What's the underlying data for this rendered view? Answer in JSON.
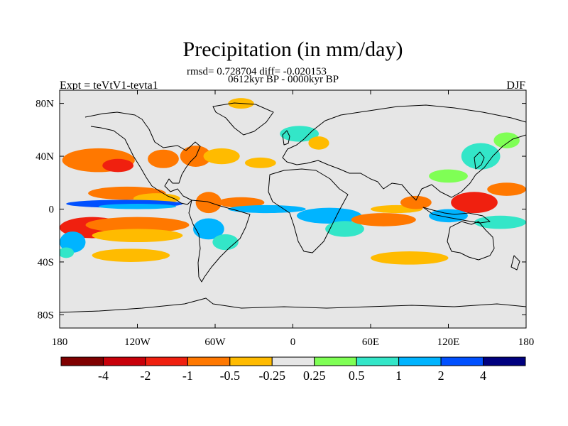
{
  "chart_data": {
    "type": "heatmap",
    "title": "Precipitation (in mm/day)",
    "subtitle_line1": "rmsd= 0.728704 diff= -0.020153",
    "subtitle_line2": "0612kyr BP - 0000kyr BP",
    "left_label": "Expt = teVtV1-tevta1",
    "right_label": "DJF",
    "x_range": [
      -180,
      180
    ],
    "y_range": [
      -90,
      90
    ],
    "x_ticks": [
      {
        "value": -180,
        "label": "180"
      },
      {
        "value": -120,
        "label": "120W"
      },
      {
        "value": -60,
        "label": "60W"
      },
      {
        "value": 0,
        "label": "0"
      },
      {
        "value": 60,
        "label": "60E"
      },
      {
        "value": 120,
        "label": "120E"
      },
      {
        "value": 180,
        "label": "180"
      }
    ],
    "y_ticks": [
      {
        "value": 80,
        "label": "80N"
      },
      {
        "value": 40,
        "label": "40N"
      },
      {
        "value": 0,
        "label": "0"
      },
      {
        "value": -40,
        "label": "40S"
      },
      {
        "value": -80,
        "label": "80S"
      }
    ],
    "colorbar": {
      "colors": [
        "#7f0000",
        "#c8000a",
        "#f0200f",
        "#ff7800",
        "#ffbb00",
        "#e6e6e6",
        "#7fff55",
        "#33e6c8",
        "#00b4ff",
        "#0050ff",
        "#00007f"
      ],
      "labels": [
        "-4",
        "-2",
        "-1",
        "-0.5",
        "-0.25",
        "0.25",
        "0.5",
        "1",
        "2",
        "4"
      ]
    },
    "regions": [
      {
        "level": -2,
        "cx": -150,
        "cy": 37,
        "rx": 28,
        "ry": 9
      },
      {
        "level": -3,
        "cx": -135,
        "cy": 33,
        "rx": 12,
        "ry": 5
      },
      {
        "level": -2,
        "cx": -128,
        "cy": 12,
        "rx": 30,
        "ry": 5
      },
      {
        "level": -1,
        "cx": -105,
        "cy": 8,
        "rx": 18,
        "ry": 4
      },
      {
        "level": 4,
        "cx": -130,
        "cy": 4,
        "rx": 45,
        "ry": 3
      },
      {
        "level": 3,
        "cx": -120,
        "cy": 2,
        "rx": 30,
        "ry": 2
      },
      {
        "level": -3,
        "cx": -155,
        "cy": -14,
        "rx": 25,
        "ry": 8
      },
      {
        "level": -2,
        "cx": -120,
        "cy": -12,
        "rx": 40,
        "ry": 6
      },
      {
        "level": -1,
        "cx": -120,
        "cy": -20,
        "rx": 35,
        "ry": 5
      },
      {
        "level": 3,
        "cx": -170,
        "cy": -25,
        "rx": 10,
        "ry": 8
      },
      {
        "level": 2,
        "cx": -175,
        "cy": -33,
        "rx": 6,
        "ry": 4
      },
      {
        "level": -1,
        "cx": -125,
        "cy": -35,
        "rx": 30,
        "ry": 5
      },
      {
        "level": -2,
        "cx": -100,
        "cy": 38,
        "rx": 12,
        "ry": 7
      },
      {
        "level": -2,
        "cx": -75,
        "cy": 40,
        "rx": 12,
        "ry": 8
      },
      {
        "level": -1,
        "cx": -55,
        "cy": 40,
        "rx": 14,
        "ry": 6
      },
      {
        "level": -1,
        "cx": -25,
        "cy": 35,
        "rx": 12,
        "ry": 4
      },
      {
        "level": -2,
        "cx": -65,
        "cy": 5,
        "rx": 10,
        "ry": 8
      },
      {
        "level": 3,
        "cx": -65,
        "cy": -15,
        "rx": 12,
        "ry": 8
      },
      {
        "level": 2,
        "cx": -52,
        "cy": -25,
        "rx": 10,
        "ry": 6
      },
      {
        "level": -2,
        "cx": -40,
        "cy": 5,
        "rx": 18,
        "ry": 4
      },
      {
        "level": 3,
        "cx": -20,
        "cy": 0,
        "rx": 30,
        "ry": 3
      },
      {
        "level": 3,
        "cx": 28,
        "cy": -5,
        "rx": 25,
        "ry": 6
      },
      {
        "level": 2,
        "cx": 40,
        "cy": -15,
        "rx": 15,
        "ry": 6
      },
      {
        "level": -2,
        "cx": 70,
        "cy": -8,
        "rx": 25,
        "ry": 5
      },
      {
        "level": -1,
        "cx": 80,
        "cy": 0,
        "rx": 20,
        "ry": 3
      },
      {
        "level": 2,
        "cx": 5,
        "cy": 57,
        "rx": 15,
        "ry": 6
      },
      {
        "level": -1,
        "cx": 20,
        "cy": 50,
        "rx": 8,
        "ry": 5
      },
      {
        "level": -2,
        "cx": 95,
        "cy": 5,
        "rx": 12,
        "ry": 5
      },
      {
        "level": -3,
        "cx": 140,
        "cy": 5,
        "rx": 18,
        "ry": 8
      },
      {
        "level": 3,
        "cx": 120,
        "cy": -5,
        "rx": 15,
        "ry": 5
      },
      {
        "level": 2,
        "cx": 160,
        "cy": -10,
        "rx": 20,
        "ry": 5
      },
      {
        "level": 2,
        "cx": 145,
        "cy": 40,
        "rx": 15,
        "ry": 10
      },
      {
        "level": 1,
        "cx": 120,
        "cy": 25,
        "rx": 15,
        "ry": 5
      },
      {
        "level": 1,
        "cx": 165,
        "cy": 52,
        "rx": 10,
        "ry": 6
      },
      {
        "level": -2,
        "cx": 165,
        "cy": 15,
        "rx": 15,
        "ry": 5
      },
      {
        "level": -1,
        "cx": 90,
        "cy": -37,
        "rx": 30,
        "ry": 5
      },
      {
        "level": -1,
        "cx": -40,
        "cy": 80,
        "rx": 10,
        "ry": 4
      }
    ]
  }
}
